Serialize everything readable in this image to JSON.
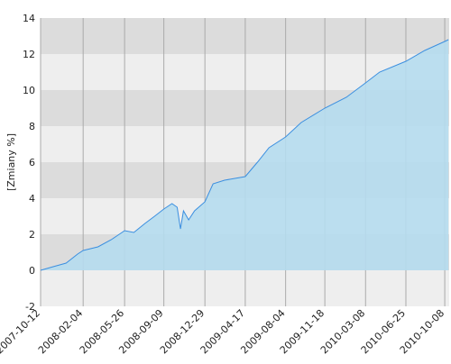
{
  "chart_data": {
    "type": "area",
    "y_label": "[Zmiany %]",
    "x": [
      "2007-10-12",
      "2007-11-15",
      "2007-12-20",
      "2008-01-20",
      "2008-02-04",
      "2008-03-15",
      "2008-04-20",
      "2008-05-26",
      "2008-06-20",
      "2008-07-20",
      "2008-08-15",
      "2008-09-09",
      "2008-10-01",
      "2008-10-15",
      "2008-10-24",
      "2008-11-01",
      "2008-11-15",
      "2008-12-01",
      "2008-12-29",
      "2009-01-20",
      "2009-02-20",
      "2009-03-20",
      "2009-04-17",
      "2009-05-20",
      "2009-06-20",
      "2009-08-04",
      "2009-09-15",
      "2009-11-18",
      "2010-01-15",
      "2010-03-08",
      "2010-04-15",
      "2010-06-25",
      "2010-08-15",
      "2010-10-08",
      "2010-10-18"
    ],
    "series": [
      {
        "color": "#3b8fe0",
        "fill": "#b5dcee",
        "values": [
          0,
          0.2,
          0.4,
          0.9,
          1.1,
          1.3,
          1.7,
          2.2,
          2.1,
          2.6,
          3.0,
          3.4,
          3.7,
          3.5,
          2.3,
          3.3,
          2.8,
          3.3,
          3.8,
          4.8,
          5.0,
          5.1,
          5.2,
          6.0,
          6.8,
          7.4,
          8.2,
          9.0,
          9.6,
          10.4,
          11.0,
          11.6,
          12.2,
          12.7,
          12.8
        ]
      }
    ],
    "xlim": [
      "2007-10-12",
      "2010-10-20"
    ],
    "xticks": [
      "2007-10-12",
      "2008-02-04",
      "2008-05-26",
      "2008-09-09",
      "2008-12-29",
      "2009-04-17",
      "2009-08-04",
      "2009-11-18",
      "2010-03-08",
      "2010-06-25",
      "2010-10-08"
    ],
    "ylim": [
      -2,
      14
    ],
    "yticks": [
      -2,
      0,
      2,
      4,
      6,
      8,
      10,
      12,
      14
    ],
    "band_colors": [
      "#eeeeee",
      "#dcdcdc"
    ],
    "grid": true
  }
}
